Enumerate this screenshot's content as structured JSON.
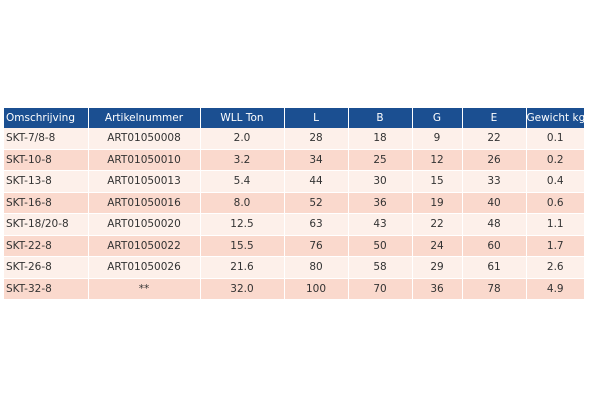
{
  "table": {
    "headers": [
      "Omschrijving",
      "Artikelnummer",
      "WLL Ton",
      "L",
      "B",
      "G",
      "E",
      "Gewicht kg"
    ],
    "rows": [
      [
        "SKT-7/8-8",
        "ART01050008",
        "2.0",
        "28",
        "18",
        "9",
        "22",
        "0.1"
      ],
      [
        "SKT-10-8",
        "ART01050010",
        "3.2",
        "34",
        "25",
        "12",
        "26",
        "0.2"
      ],
      [
        "SKT-13-8",
        "ART01050013",
        "5.4",
        "44",
        "30",
        "15",
        "33",
        "0.4"
      ],
      [
        "SKT-16-8",
        "ART01050016",
        "8.0",
        "52",
        "36",
        "19",
        "40",
        "0.6"
      ],
      [
        "SKT-18/20-8",
        "ART01050020",
        "12.5",
        "63",
        "43",
        "22",
        "48",
        "1.1"
      ],
      [
        "SKT-22-8",
        "ART01050022",
        "15.5",
        "76",
        "50",
        "24",
        "60",
        "1.7"
      ],
      [
        "SKT-26-8",
        "ART01050026",
        "21.6",
        "80",
        "58",
        "29",
        "61",
        "2.6"
      ],
      [
        "SKT-32-8",
        "**",
        "32.0",
        "100",
        "70",
        "36",
        "78",
        "4.9"
      ]
    ]
  },
  "colors": {
    "header_bg": "#1b4f91",
    "row_light": "#fdf0ea",
    "row_dark": "#fad9cd"
  }
}
